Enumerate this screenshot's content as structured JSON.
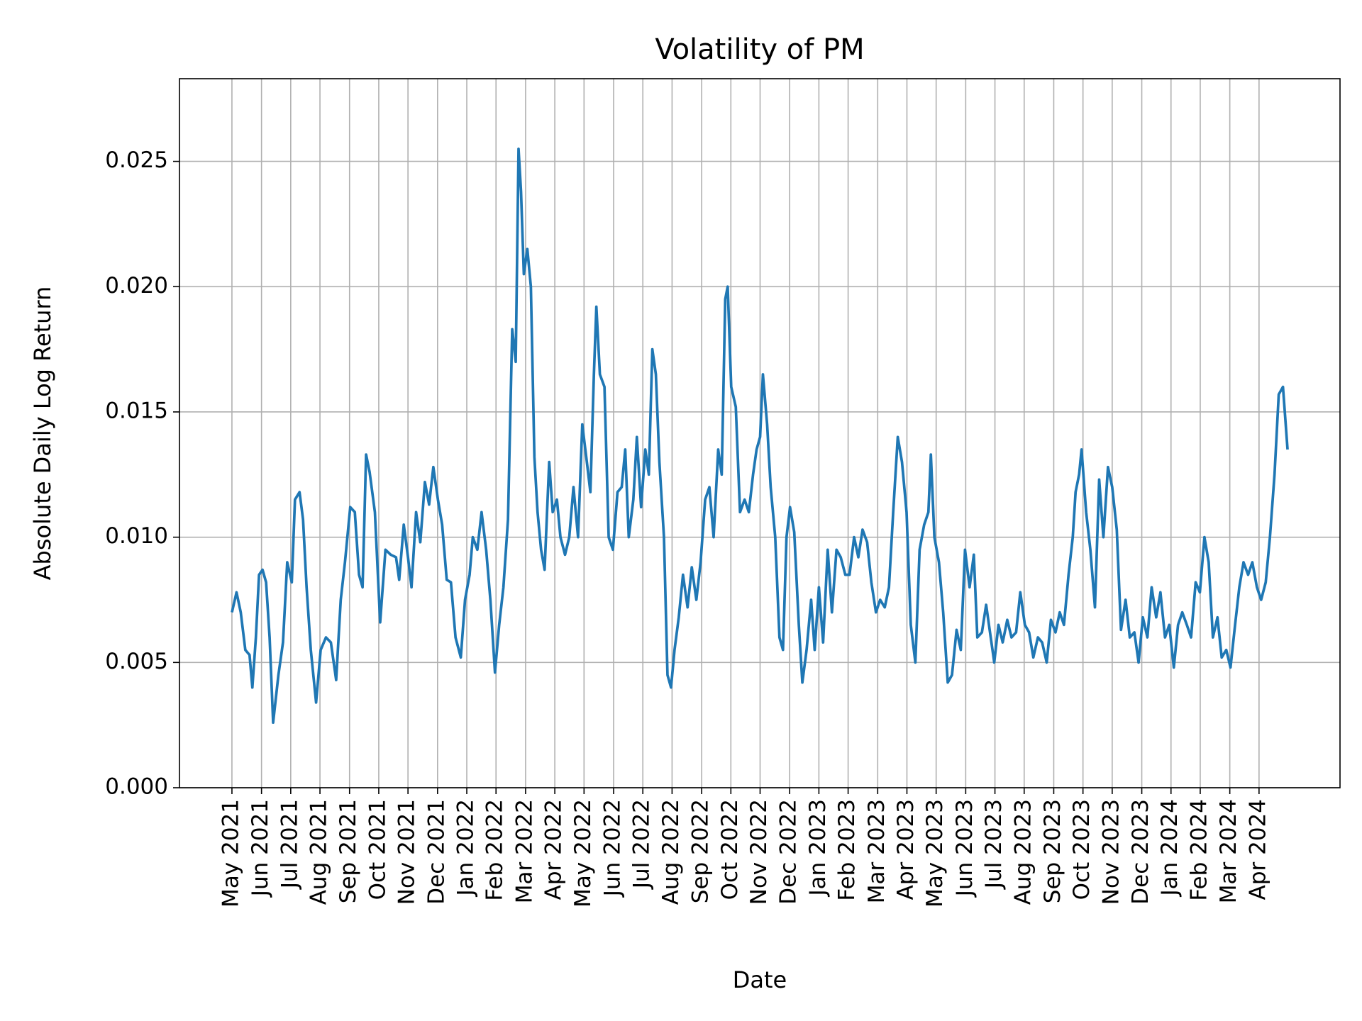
{
  "chart_data": {
    "type": "line",
    "title": "Volatility of PM",
    "x_label": "Date",
    "y_label": "Absolute Daily Log Return",
    "color": "#1f77b4",
    "grid": true,
    "xlim": [
      2021.184,
      2024.48
    ],
    "ylim": [
      0,
      0.0283
    ],
    "xticks": [
      {
        "value": 2021.333,
        "label": "May 2021"
      },
      {
        "value": 2021.417,
        "label": "Jun 2021"
      },
      {
        "value": 2021.5,
        "label": "Jul 2021"
      },
      {
        "value": 2021.583,
        "label": "Aug 2021"
      },
      {
        "value": 2021.667,
        "label": "Sep 2021"
      },
      {
        "value": 2021.75,
        "label": "Oct 2021"
      },
      {
        "value": 2021.833,
        "label": "Nov 2021"
      },
      {
        "value": 2021.917,
        "label": "Dec 2021"
      },
      {
        "value": 2022.0,
        "label": "Jan 2022"
      },
      {
        "value": 2022.083,
        "label": "Feb 2022"
      },
      {
        "value": 2022.167,
        "label": "Mar 2022"
      },
      {
        "value": 2022.25,
        "label": "Apr 2022"
      },
      {
        "value": 2022.333,
        "label": "May 2022"
      },
      {
        "value": 2022.417,
        "label": "Jun 2022"
      },
      {
        "value": 2022.5,
        "label": "Jul 2022"
      },
      {
        "value": 2022.583,
        "label": "Aug 2022"
      },
      {
        "value": 2022.667,
        "label": "Sep 2022"
      },
      {
        "value": 2022.75,
        "label": "Oct 2022"
      },
      {
        "value": 2022.833,
        "label": "Nov 2022"
      },
      {
        "value": 2022.917,
        "label": "Dec 2022"
      },
      {
        "value": 2023.0,
        "label": "Jan 2023"
      },
      {
        "value": 2023.083,
        "label": "Feb 2023"
      },
      {
        "value": 2023.167,
        "label": "Mar 2023"
      },
      {
        "value": 2023.25,
        "label": "Apr 2023"
      },
      {
        "value": 2023.333,
        "label": "May 2023"
      },
      {
        "value": 2023.417,
        "label": "Jun 2023"
      },
      {
        "value": 2023.5,
        "label": "Jul 2023"
      },
      {
        "value": 2023.583,
        "label": "Aug 2023"
      },
      {
        "value": 2023.667,
        "label": "Sep 2023"
      },
      {
        "value": 2023.75,
        "label": "Oct 2023"
      },
      {
        "value": 2023.833,
        "label": "Nov 2023"
      },
      {
        "value": 2023.917,
        "label": "Dec 2023"
      },
      {
        "value": 2024.0,
        "label": "Jan 2024"
      },
      {
        "value": 2024.083,
        "label": "Feb 2024"
      },
      {
        "value": 2024.167,
        "label": "Mar 2024"
      },
      {
        "value": 2024.25,
        "label": "Apr 2024"
      }
    ],
    "yticks": [
      {
        "value": 0,
        "label": "0.000"
      },
      0.005,
      {
        "value": 0.01,
        "label": "0.010"
      },
      0.015,
      {
        "value": 0.02,
        "label": "0.020"
      },
      0.025
    ],
    "x": [
      2021.333,
      2021.346,
      2021.358,
      2021.371,
      2021.383,
      2021.391,
      2021.401,
      2021.41,
      2021.42,
      2021.43,
      2021.44,
      2021.45,
      2021.465,
      2021.478,
      2021.49,
      2021.503,
      2021.512,
      2021.525,
      2021.535,
      2021.545,
      2021.557,
      2021.572,
      2021.585,
      2021.6,
      2021.614,
      2021.629,
      2021.642,
      2021.654,
      2021.669,
      2021.682,
      2021.694,
      2021.704,
      2021.714,
      2021.724,
      2021.739,
      2021.754,
      2021.769,
      2021.784,
      2021.799,
      2021.808,
      2021.821,
      2021.833,
      2021.843,
      2021.856,
      2021.868,
      2021.881,
      2021.893,
      2021.905,
      2021.918,
      2021.93,
      2021.943,
      2021.955,
      2021.968,
      2021.983,
      2021.995,
      2022.008,
      2022.017,
      2022.03,
      2022.042,
      2022.055,
      2022.067,
      2022.08,
      2022.092,
      2022.104,
      2022.117,
      2022.129,
      2022.139,
      2022.147,
      2022.154,
      2022.162,
      2022.172,
      2022.182,
      2022.192,
      2022.201,
      2022.211,
      2022.221,
      2022.234,
      2022.244,
      2022.256,
      2022.266,
      2022.279,
      2022.291,
      2022.303,
      2022.316,
      2022.328,
      2022.341,
      2022.351,
      2022.361,
      2022.368,
      2022.378,
      2022.391,
      2022.403,
      2022.415,
      2022.428,
      2022.44,
      2022.45,
      2022.46,
      2022.473,
      2022.483,
      2022.495,
      2022.507,
      2022.517,
      2022.527,
      2022.537,
      2022.547,
      2022.56,
      2022.57,
      2022.58,
      2022.59,
      2022.602,
      2022.614,
      2022.627,
      2022.639,
      2022.652,
      2022.664,
      2022.677,
      2022.689,
      2022.701,
      2022.714,
      2022.724,
      2022.734,
      2022.741,
      2022.751,
      2022.764,
      2022.776,
      2022.789,
      2022.801,
      2022.813,
      2022.823,
      2022.833,
      2022.841,
      2022.853,
      2022.863,
      2022.876,
      2022.888,
      2022.898,
      2022.908,
      2022.918,
      2022.93,
      2022.943,
      2022.953,
      2022.965,
      2022.978,
      2022.988,
      2023.0,
      2023.012,
      2023.025,
      2023.037,
      2023.05,
      2023.062,
      2023.075,
      2023.087,
      2023.1,
      2023.112,
      2023.124,
      2023.137,
      2023.149,
      2023.162,
      2023.174,
      2023.187,
      2023.199,
      2023.211,
      2023.224,
      2023.236,
      2023.249,
      2023.261,
      2023.274,
      2023.286,
      2023.299,
      2023.311,
      2023.318,
      2023.328,
      2023.341,
      2023.353,
      2023.366,
      2023.378,
      2023.391,
      2023.403,
      2023.415,
      2023.428,
      2023.44,
      2023.45,
      2023.463,
      2023.475,
      2023.488,
      2023.498,
      2023.51,
      2023.522,
      2023.535,
      2023.547,
      2023.56,
      2023.572,
      2023.585,
      2023.597,
      2023.609,
      2023.622,
      2023.634,
      2023.647,
      2023.659,
      2023.672,
      2023.684,
      2023.696,
      2023.709,
      2023.721,
      2023.729,
      2023.739,
      2023.746,
      2023.759,
      2023.771,
      2023.784,
      2023.796,
      2023.808,
      2023.821,
      2023.833,
      2023.846,
      2023.858,
      2023.871,
      2023.883,
      2023.896,
      2023.908,
      2023.92,
      2023.933,
      2023.945,
      2023.958,
      2023.97,
      2023.983,
      2023.995,
      2024.008,
      2024.02,
      2024.032,
      2024.045,
      2024.057,
      2024.07,
      2024.082,
      2024.095,
      2024.107,
      2024.119,
      2024.132,
      2024.144,
      2024.157,
      2024.169,
      2024.182,
      2024.194,
      2024.206,
      2024.219,
      2024.231,
      2024.244,
      2024.256,
      2024.269,
      2024.281,
      2024.294,
      2024.306,
      2024.318,
      2024.331
    ],
    "values": [
      0.007,
      0.0078,
      0.007,
      0.0055,
      0.0053,
      0.004,
      0.006,
      0.0085,
      0.0087,
      0.0082,
      0.006,
      0.0026,
      0.0045,
      0.0058,
      0.009,
      0.0082,
      0.0115,
      0.0118,
      0.0107,
      0.008,
      0.0055,
      0.0034,
      0.0055,
      0.006,
      0.0058,
      0.0043,
      0.0075,
      0.009,
      0.0112,
      0.011,
      0.0085,
      0.008,
      0.0133,
      0.0126,
      0.011,
      0.0066,
      0.0095,
      0.0093,
      0.0092,
      0.0083,
      0.0105,
      0.0092,
      0.008,
      0.011,
      0.0098,
      0.0122,
      0.0113,
      0.0128,
      0.0115,
      0.0105,
      0.0083,
      0.0082,
      0.006,
      0.0052,
      0.0075,
      0.0085,
      0.01,
      0.0095,
      0.011,
      0.0095,
      0.0075,
      0.0046,
      0.0065,
      0.008,
      0.0107,
      0.0183,
      0.017,
      0.0255,
      0.0238,
      0.0205,
      0.0215,
      0.02,
      0.0132,
      0.011,
      0.0095,
      0.0087,
      0.013,
      0.011,
      0.0115,
      0.01,
      0.0093,
      0.01,
      0.012,
      0.01,
      0.0145,
      0.013,
      0.0118,
      0.0165,
      0.0192,
      0.0165,
      0.016,
      0.01,
      0.0095,
      0.0118,
      0.012,
      0.0135,
      0.01,
      0.0115,
      0.014,
      0.0112,
      0.0135,
      0.0125,
      0.0175,
      0.0165,
      0.013,
      0.01,
      0.0045,
      0.004,
      0.0055,
      0.0068,
      0.0085,
      0.0072,
      0.0088,
      0.0075,
      0.009,
      0.0115,
      0.012,
      0.01,
      0.0135,
      0.0125,
      0.0195,
      0.02,
      0.016,
      0.0152,
      0.011,
      0.0115,
      0.011,
      0.0125,
      0.0135,
      0.014,
      0.0165,
      0.0145,
      0.012,
      0.01,
      0.006,
      0.0055,
      0.01,
      0.0112,
      0.0102,
      0.0065,
      0.0042,
      0.0055,
      0.0075,
      0.0055,
      0.008,
      0.0058,
      0.0095,
      0.007,
      0.0095,
      0.0092,
      0.0085,
      0.0085,
      0.01,
      0.0092,
      0.0103,
      0.0098,
      0.0082,
      0.007,
      0.0075,
      0.0072,
      0.008,
      0.011,
      0.014,
      0.013,
      0.011,
      0.0065,
      0.005,
      0.0095,
      0.0105,
      0.011,
      0.0133,
      0.01,
      0.009,
      0.007,
      0.0042,
      0.0045,
      0.0063,
      0.0055,
      0.0095,
      0.008,
      0.0093,
      0.006,
      0.0062,
      0.0073,
      0.006,
      0.005,
      0.0065,
      0.0058,
      0.0067,
      0.006,
      0.0062,
      0.0078,
      0.0065,
      0.0062,
      0.0052,
      0.006,
      0.0058,
      0.005,
      0.0067,
      0.0062,
      0.007,
      0.0065,
      0.0085,
      0.01,
      0.0118,
      0.0125,
      0.0135,
      0.011,
      0.0095,
      0.0072,
      0.0123,
      0.01,
      0.0128,
      0.012,
      0.0103,
      0.0063,
      0.0075,
      0.006,
      0.0062,
      0.005,
      0.0068,
      0.006,
      0.008,
      0.0068,
      0.0078,
      0.006,
      0.0065,
      0.0048,
      0.0065,
      0.007,
      0.0065,
      0.006,
      0.0082,
      0.0078,
      0.01,
      0.009,
      0.006,
      0.0068,
      0.0052,
      0.0055,
      0.0048,
      0.0065,
      0.008,
      0.009,
      0.0085,
      0.009,
      0.008,
      0.0075,
      0.0082,
      0.01,
      0.0125,
      0.0157,
      0.016,
      0.0135
    ]
  }
}
